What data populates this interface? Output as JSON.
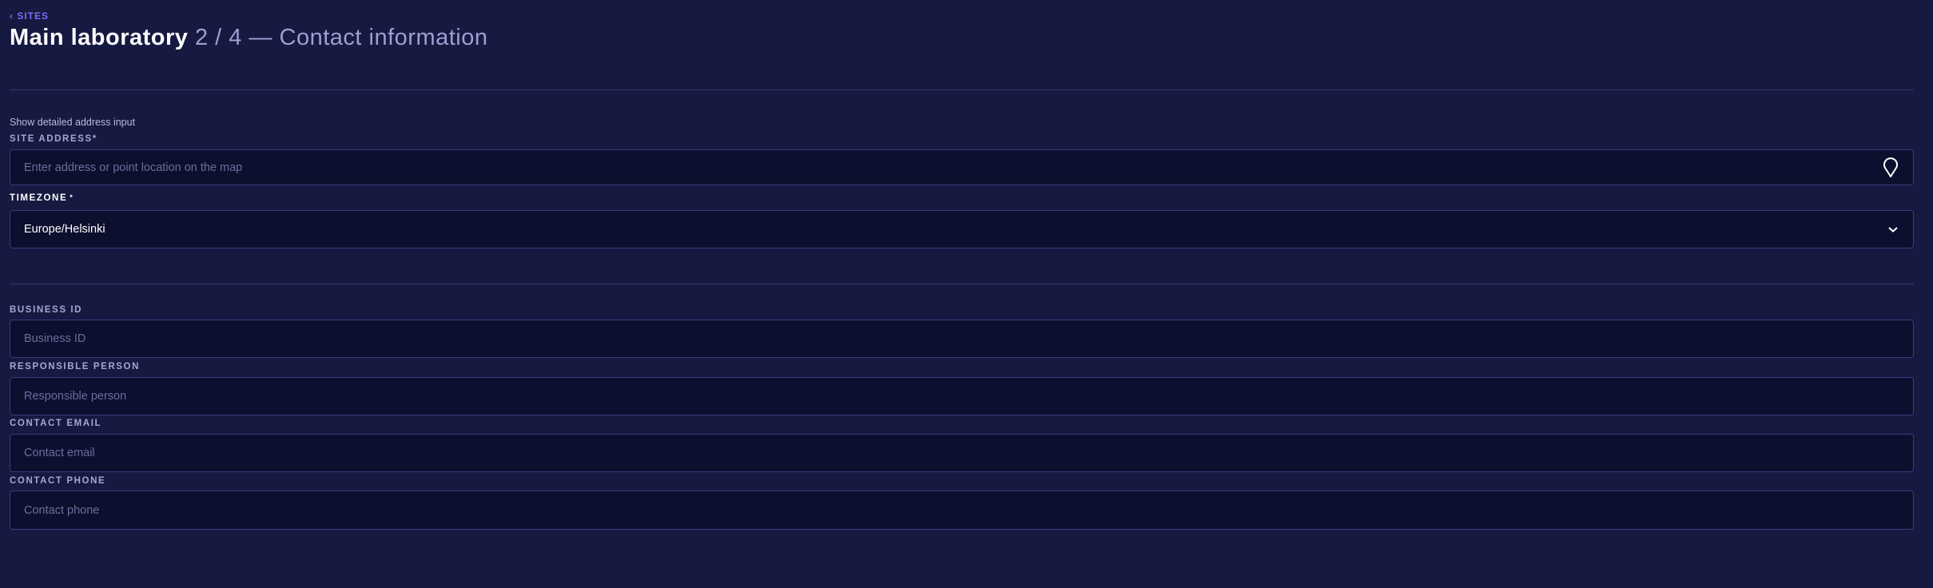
{
  "breadcrumb": {
    "back_label": "SITES"
  },
  "header": {
    "title": "Main laboratory",
    "subtitle": "2 / 4 — Contact information"
  },
  "address": {
    "toggle_label": "Show detailed address input",
    "label": "SITE ADDRESS*",
    "placeholder": "Enter address or point location on the map",
    "value": "",
    "icon": "map-pin-icon"
  },
  "timezone": {
    "label": "TIMEZONE",
    "required_mark": "*",
    "value": "Europe/Helsinki",
    "icon": "chevron-down-icon"
  },
  "fields": [
    {
      "label": "BUSINESS ID",
      "placeholder": "Business ID",
      "value": ""
    },
    {
      "label": "RESPONSIBLE PERSON",
      "placeholder": "Responsible person",
      "value": ""
    },
    {
      "label": "CONTACT EMAIL",
      "placeholder": "Contact email",
      "value": ""
    },
    {
      "label": "CONTACT PHONE",
      "placeholder": "Contact phone",
      "value": ""
    }
  ],
  "colors": {
    "background": "#161940",
    "input_bg": "#0d0f2e",
    "border": "#363c80",
    "accent": "#7a6cf5"
  }
}
